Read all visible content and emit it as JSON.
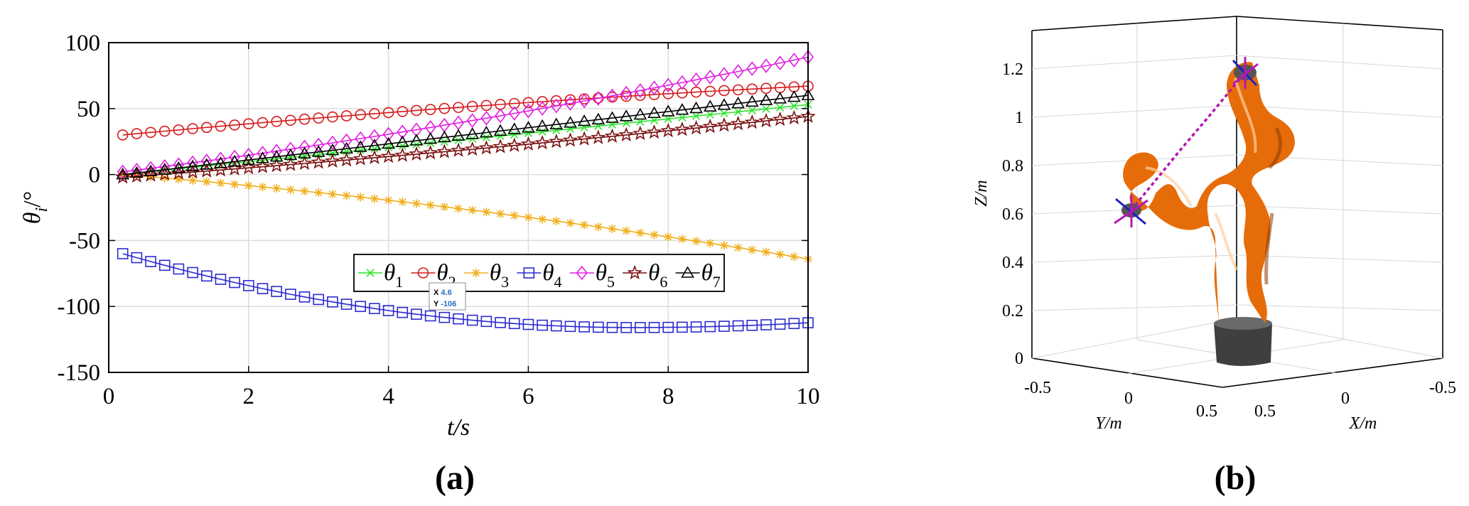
{
  "chart_data": [
    {
      "type": "line",
      "panel_label": "(a)",
      "xlabel": "t/s",
      "ylabel_base": "θ",
      "ylabel_sub": "i",
      "ylabel_unit": "/°",
      "xlim": [
        0,
        10
      ],
      "ylim": [
        -150,
        100
      ],
      "xticks": [
        0,
        2,
        4,
        6,
        8,
        10
      ],
      "yticks": [
        100,
        50,
        0,
        -50,
        -100,
        -150
      ],
      "grid": true,
      "legend_position": "lower-center",
      "x_start": 0.2,
      "x_step": 0.2,
      "x_end": 10,
      "series": [
        {
          "name": "θ",
          "sub": "1",
          "color": "#2ee32e",
          "marker": "x",
          "start": 0,
          "end": 53,
          "curve": 0
        },
        {
          "name": "θ",
          "sub": "2",
          "color": "#d7191c",
          "marker": "circle",
          "start": 30,
          "end": 67,
          "curve": -0.3
        },
        {
          "name": "θ",
          "sub": "3",
          "color": "#f0b020",
          "marker": "asterisk",
          "start": 0,
          "end": -64,
          "curve": 0.35
        },
        {
          "name": "θ",
          "sub": "4",
          "color": "#2b2bd0",
          "marker": "square",
          "start": -60,
          "end": -110,
          "curve": 0,
          "min_x": 7.5,
          "min_y": -116
        },
        {
          "name": "θ",
          "sub": "5",
          "color": "#e01ee0",
          "marker": "diamond",
          "start": 2,
          "end": 89,
          "curve": 0.25
        },
        {
          "name": "θ",
          "sub": "6",
          "color": "#7a1010",
          "marker": "star",
          "start": -2,
          "end": 44,
          "curve": 0.2
        },
        {
          "name": "θ",
          "sub": "7",
          "color": "#000000",
          "marker": "triangle",
          "start": 0,
          "end": 60,
          "curve": 0
        }
      ],
      "datatip": {
        "x_label": "X",
        "x_value": "4.6",
        "y_label": "Y",
        "y_value": "-106",
        "color": "#1f6fbf"
      }
    },
    {
      "type": "3d-robot",
      "panel_label": "(b)",
      "xlabel": "X/m",
      "ylabel": "Y/m",
      "zlabel": "Z/m",
      "zticks": [
        "1.2",
        "1",
        "0.8",
        "0.6",
        "0.4",
        "0.2",
        "0"
      ],
      "yticks": [
        "-0.5",
        "0",
        "0.5"
      ],
      "xticks": [
        "0.5",
        "0",
        "-0.5"
      ],
      "robot_color": "#e66c0a",
      "path_color": "#b418b4"
    }
  ]
}
